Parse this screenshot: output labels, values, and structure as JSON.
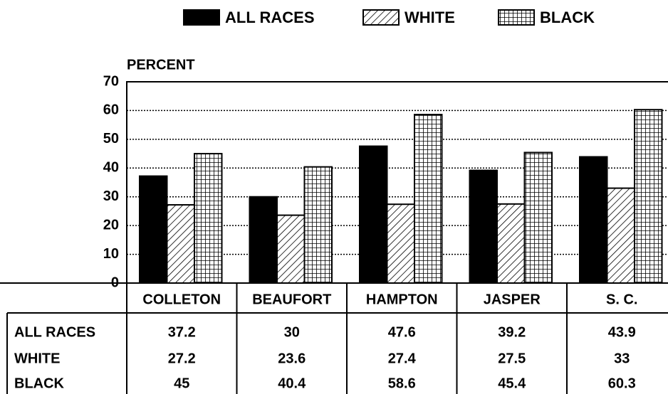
{
  "chart_data": {
    "type": "bar",
    "y_label": "PERCENT",
    "categories": [
      "COLLETON",
      "BEAUFORT",
      "HAMPTON",
      "JASPER",
      "S. C."
    ],
    "series": [
      {
        "name": "ALL RACES",
        "color": "#000000",
        "pattern": "solid",
        "values": [
          37.2,
          30,
          47.6,
          39.2,
          43.9
        ]
      },
      {
        "name": "WHITE",
        "color": "#000000",
        "pattern": "diagonal",
        "values": [
          27.2,
          23.6,
          27.4,
          27.5,
          33
        ]
      },
      {
        "name": "BLACK",
        "color": "#000000",
        "pattern": "grid",
        "values": [
          45,
          40.4,
          58.6,
          45.4,
          60.3
        ]
      }
    ],
    "ylim": [
      0,
      70
    ],
    "yticks": [
      0,
      10,
      20,
      30,
      40,
      50,
      60,
      70
    ],
    "grid": true,
    "legend": "top"
  }
}
